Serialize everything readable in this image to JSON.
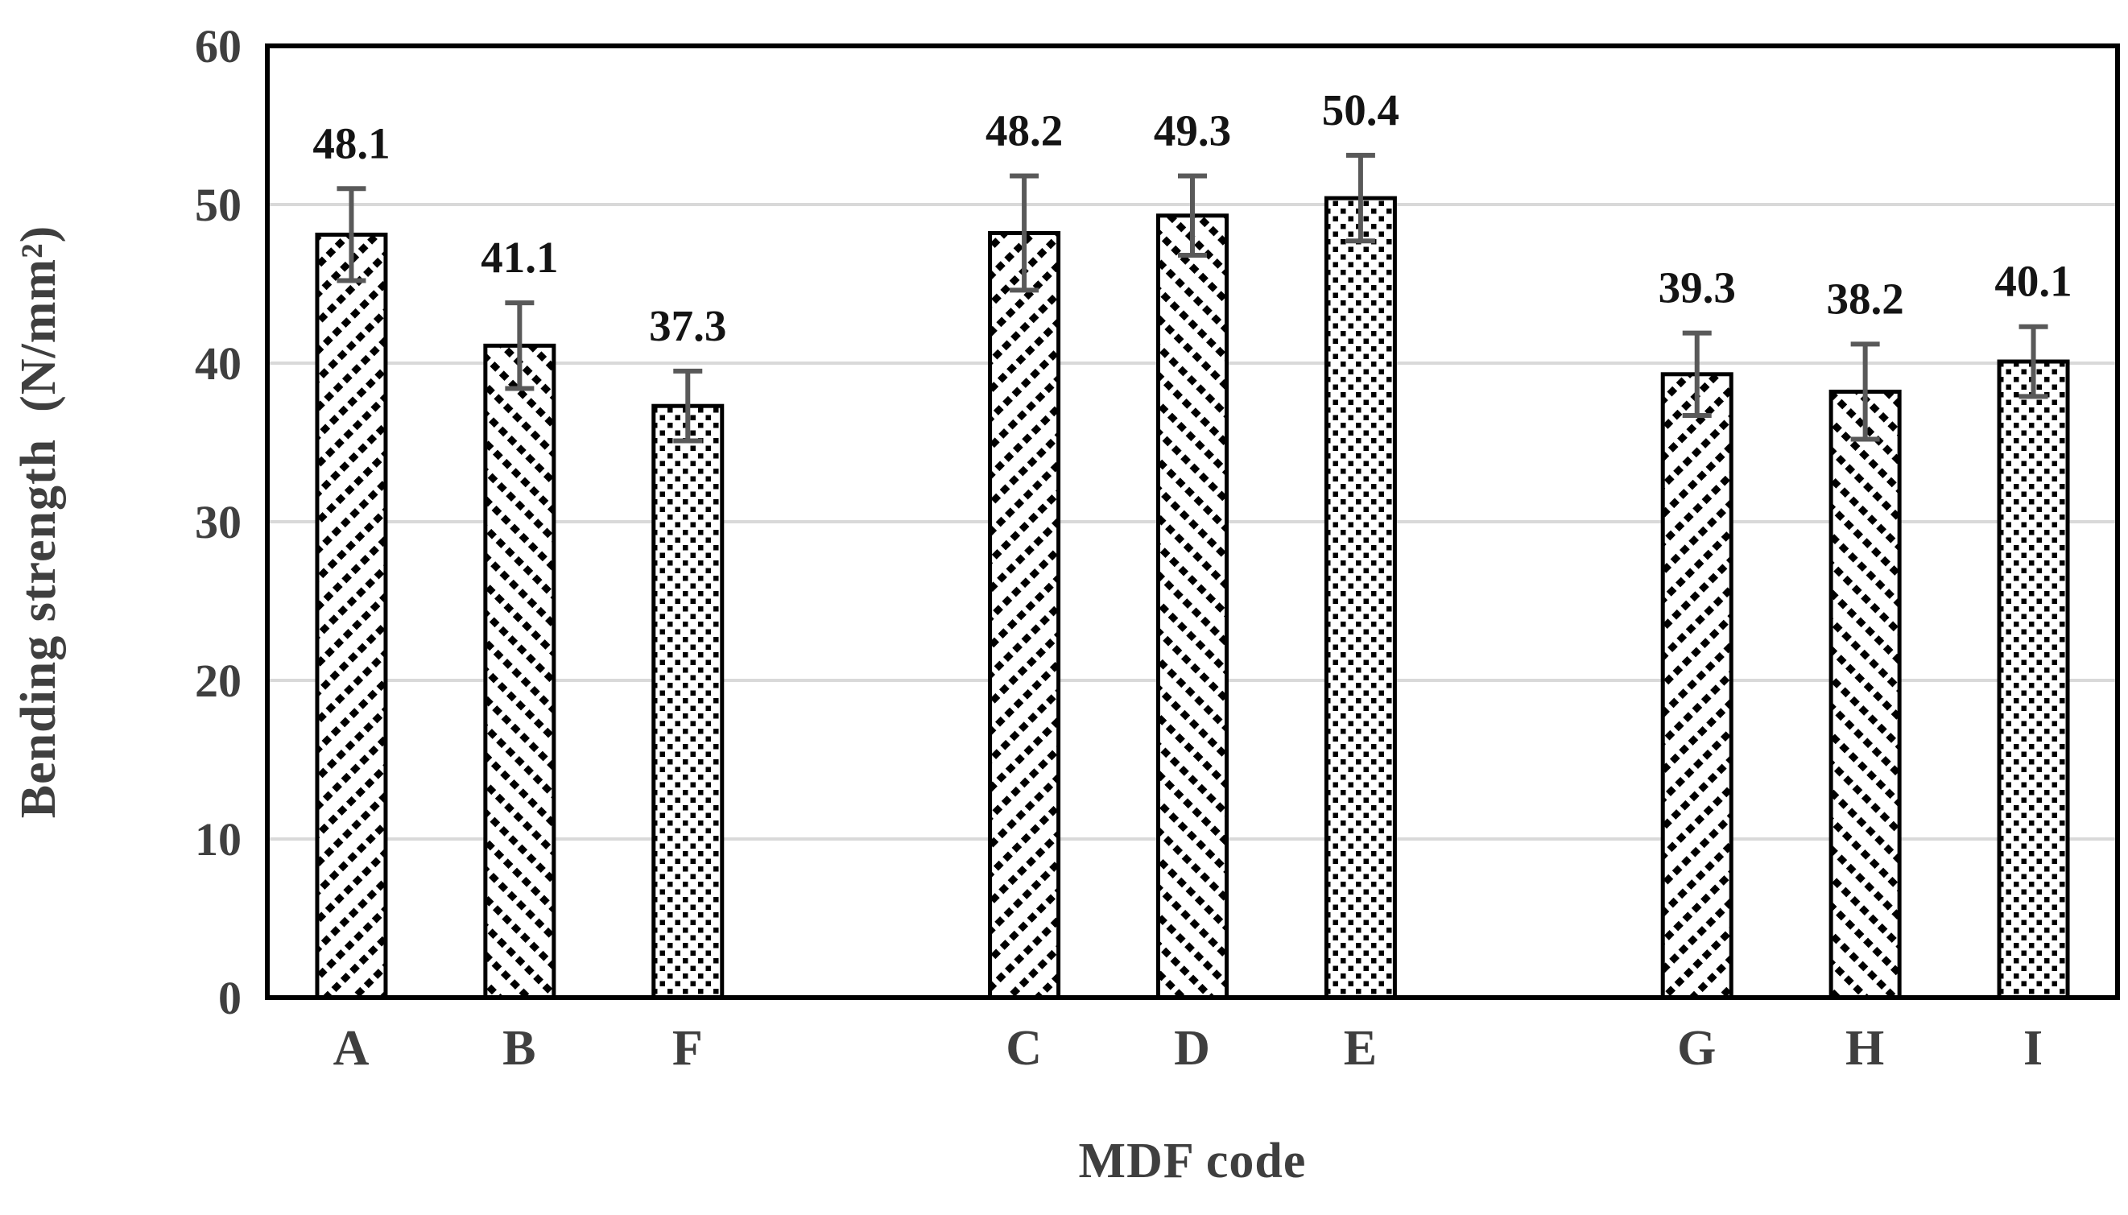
{
  "chart_data": {
    "type": "bar",
    "title": "",
    "xlabel": "MDF code",
    "ylabel": "Bending strength  (N/mm²)",
    "ylim": [
      0,
      60
    ],
    "y_ticks": [
      0,
      10,
      20,
      30,
      40,
      50,
      60
    ],
    "grid": true,
    "legend": "none",
    "categories": [
      "A",
      "B",
      "F",
      "C",
      "D",
      "E",
      "G",
      "H",
      "I"
    ],
    "values": [
      48.1,
      41.1,
      37.3,
      48.2,
      49.3,
      50.4,
      39.3,
      38.2,
      40.1
    ],
    "errors": [
      2.9,
      2.7,
      2.2,
      3.6,
      2.5,
      2.7,
      2.6,
      3.0,
      2.2
    ],
    "data_labels": [
      "48.1",
      "41.1",
      "37.3",
      "48.2",
      "49.3",
      "50.4",
      "39.3",
      "38.2",
      "40.1"
    ],
    "bar_patterns": [
      "diagonal-up",
      "diagonal-down",
      "dots",
      "diagonal-up",
      "diagonal-down",
      "dots",
      "diagonal-up",
      "diagonal-down",
      "dots"
    ],
    "slot_of_bar": [
      0,
      1,
      2,
      4,
      5,
      6,
      8,
      9,
      10
    ],
    "num_slots": 11,
    "colors": {
      "bar_fill": "#ffffff",
      "bar_stroke": "#000000",
      "pattern_ink": "#000000",
      "error_bar": "#595959",
      "gridline": "#d9d9d9",
      "plot_border": "#000000",
      "tick_text": "#3f3f3f",
      "data_label_text": "#141414"
    }
  }
}
